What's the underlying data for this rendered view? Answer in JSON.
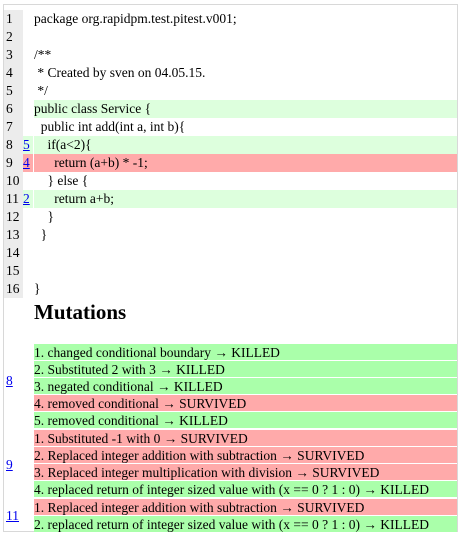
{
  "source": {
    "lines": [
      {
        "num": "1",
        "mutations": "",
        "code": "package org.rapidpm.test.pitest.v001;",
        "status": "none"
      },
      {
        "num": "2",
        "mutations": "",
        "code": "",
        "status": "none"
      },
      {
        "num": "3",
        "mutations": "",
        "code": "/**",
        "status": "none"
      },
      {
        "num": "4",
        "mutations": "",
        "code": " * Created by sven on 04.05.15.",
        "status": "none"
      },
      {
        "num": "5",
        "mutations": "",
        "code": " */",
        "status": "none"
      },
      {
        "num": "6",
        "mutations": "",
        "code": "public class Service {",
        "status": "covered"
      },
      {
        "num": "7",
        "mutations": "",
        "code": "  public int add(int a, int b){",
        "status": "none"
      },
      {
        "num": "8",
        "mutations": "5",
        "code": "    if(a<2){",
        "status": "killed"
      },
      {
        "num": "9",
        "mutations": "4",
        "code": "      return (a+b) * -1;",
        "status": "survived"
      },
      {
        "num": "10",
        "mutations": "",
        "code": "    } else {",
        "status": "none"
      },
      {
        "num": "11",
        "mutations": "2",
        "code": "      return a+b;",
        "status": "covered"
      },
      {
        "num": "12",
        "mutations": "",
        "code": "    }",
        "status": "none"
      },
      {
        "num": "13",
        "mutations": "",
        "code": "  }",
        "status": "none"
      },
      {
        "num": "14",
        "mutations": "",
        "code": "",
        "status": "none"
      },
      {
        "num": "15",
        "mutations": "",
        "code": "",
        "status": "none"
      },
      {
        "num": "16",
        "mutations": "",
        "code": "}",
        "status": "none"
      }
    ]
  },
  "mutations_heading": "Mutations",
  "mutation_groups": [
    {
      "line_link": "8",
      "items": [
        {
          "text": "1. changed conditional boundary → KILLED",
          "status": "killed"
        },
        {
          "text": "2. Substituted 2 with 3 → KILLED",
          "status": "killed"
        },
        {
          "text": "3. negated conditional → KILLED",
          "status": "killed"
        },
        {
          "text": "4. removed conditional → SURVIVED",
          "status": "survived"
        },
        {
          "text": "5. removed conditional → KILLED",
          "status": "killed"
        }
      ]
    },
    {
      "line_link": "9",
      "items": [
        {
          "text": "1. Substituted -1 with 0 → SURVIVED",
          "status": "survived"
        },
        {
          "text": "2. Replaced integer addition with subtraction → SURVIVED",
          "status": "survived"
        },
        {
          "text": "3. Replaced integer multiplication with division → SURVIVED",
          "status": "survived"
        },
        {
          "text": "4. replaced return of integer sized value with (x == 0 ? 1 : 0) → KILLED",
          "status": "killed"
        }
      ]
    },
    {
      "line_link": "11",
      "items": [
        {
          "text": "1. Replaced integer addition with subtraction → SURVIVED",
          "status": "survived"
        },
        {
          "text": "2. replaced return of integer sized value with (x == 0 ? 1 : 0) → KILLED",
          "status": "killed"
        }
      ]
    }
  ]
}
